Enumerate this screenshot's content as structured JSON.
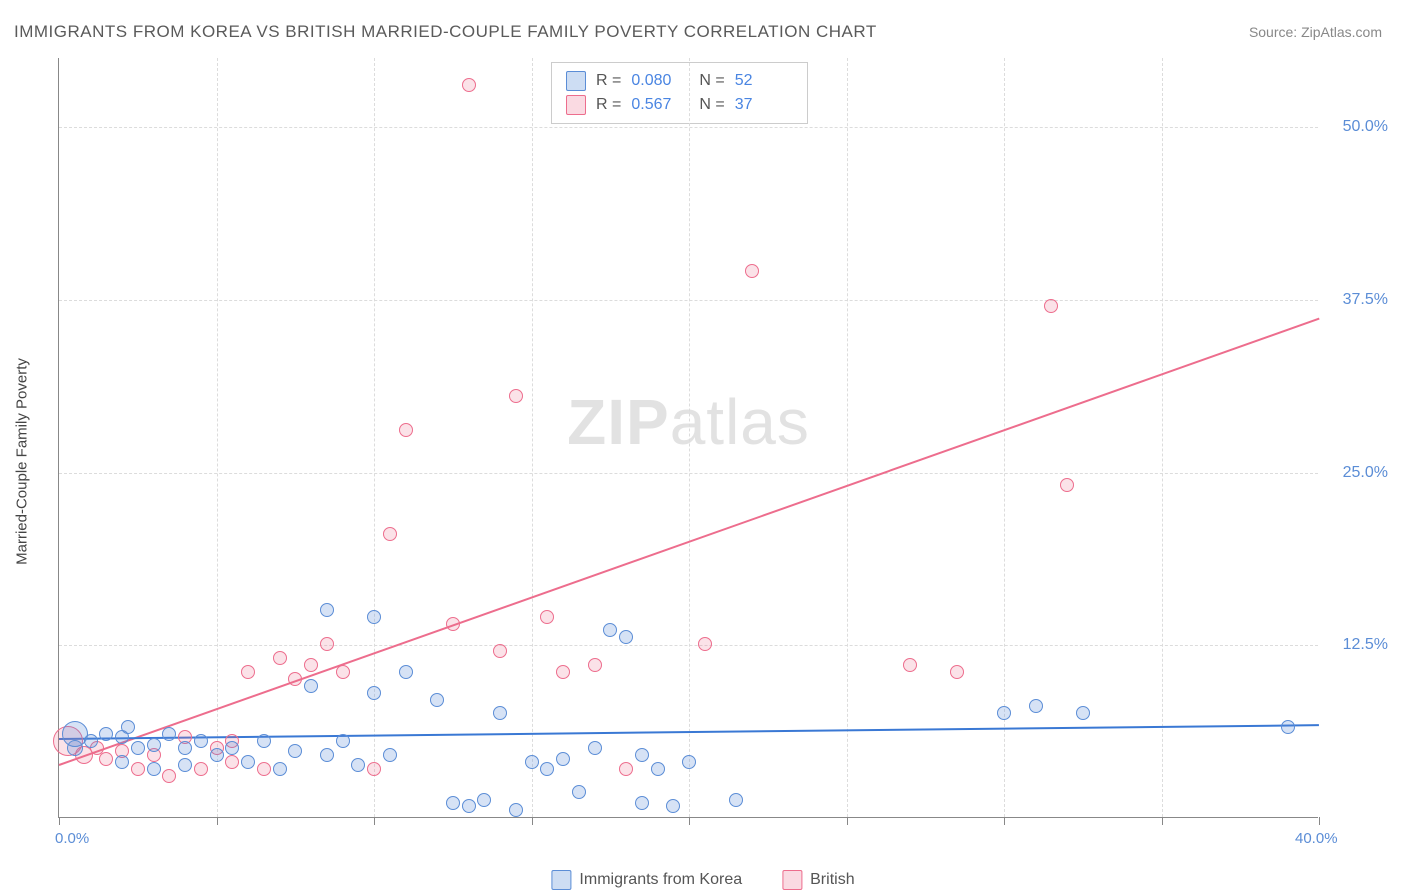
{
  "title": "IMMIGRANTS FROM KOREA VS BRITISH MARRIED-COUPLE FAMILY POVERTY CORRELATION CHART",
  "source_label": "Source: ZipAtlas.com",
  "watermark": {
    "prefix": "ZIP",
    "suffix": "atlas"
  },
  "chart": {
    "type": "scatter",
    "y_axis_label": "Married-Couple Family Poverty",
    "background_color": "#ffffff",
    "grid_color": "#dcdcdc",
    "axis_color": "#888888",
    "xlim": [
      0,
      40
    ],
    "ylim": [
      0,
      55
    ],
    "x_ticks": [
      0,
      5,
      10,
      15,
      20,
      25,
      30,
      35,
      40
    ],
    "x_tick_labels": {
      "0": "0.0%",
      "40": "40.0%"
    },
    "y_ticks": [
      12.5,
      25.0,
      37.5,
      50.0
    ],
    "y_tick_labels": [
      "12.5%",
      "25.0%",
      "37.5%",
      "50.0%"
    ],
    "legend_stats": {
      "r_label": "R =",
      "n_label": "N =",
      "rows": [
        {
          "color": "blue",
          "r": "0.080",
          "n": "52"
        },
        {
          "color": "pink",
          "r": "0.567",
          "n": "37"
        }
      ]
    },
    "bottom_legend": [
      {
        "color": "blue",
        "label": "Immigrants from Korea"
      },
      {
        "color": "pink",
        "label": "British"
      }
    ],
    "series_colors": {
      "blue": {
        "fill": "rgba(91,141,214,0.25)",
        "stroke": "#5b8dd6",
        "line": "#3a78d4"
      },
      "pink": {
        "fill": "rgba(237,109,141,0.2)",
        "stroke": "#ed6d8d",
        "line": "#ed6d8d"
      }
    },
    "trend_lines": {
      "blue": {
        "x1": 0,
        "y1": 5.8,
        "x2": 40,
        "y2": 6.8
      },
      "pink": {
        "x1": 0,
        "y1": 3.9,
        "x2": 40,
        "y2": 36.2
      }
    },
    "marker_base_size": 14,
    "points_blue": [
      {
        "x": 0.5,
        "y": 6.0,
        "s": 26
      },
      {
        "x": 0.5,
        "y": 5.0,
        "s": 16
      },
      {
        "x": 1.0,
        "y": 5.5,
        "s": 14
      },
      {
        "x": 1.5,
        "y": 6.0,
        "s": 14
      },
      {
        "x": 2.0,
        "y": 5.8,
        "s": 14
      },
      {
        "x": 2.0,
        "y": 4.0,
        "s": 14
      },
      {
        "x": 2.5,
        "y": 5.0,
        "s": 14
      },
      {
        "x": 3.0,
        "y": 5.2,
        "s": 14
      },
      {
        "x": 3.0,
        "y": 3.5,
        "s": 14
      },
      {
        "x": 3.5,
        "y": 6.0,
        "s": 14
      },
      {
        "x": 4.0,
        "y": 5.0,
        "s": 14
      },
      {
        "x": 4.0,
        "y": 3.8,
        "s": 14
      },
      {
        "x": 4.5,
        "y": 5.5,
        "s": 14
      },
      {
        "x": 5.0,
        "y": 4.5,
        "s": 14
      },
      {
        "x": 5.5,
        "y": 5.0,
        "s": 14
      },
      {
        "x": 6.0,
        "y": 4.0,
        "s": 14
      },
      {
        "x": 6.5,
        "y": 5.5,
        "s": 14
      },
      {
        "x": 7.0,
        "y": 3.5,
        "s": 14
      },
      {
        "x": 7.5,
        "y": 4.8,
        "s": 14
      },
      {
        "x": 8.0,
        "y": 9.5,
        "s": 14
      },
      {
        "x": 8.5,
        "y": 4.5,
        "s": 14
      },
      {
        "x": 8.5,
        "y": 15.0,
        "s": 14
      },
      {
        "x": 9.0,
        "y": 5.5,
        "s": 14
      },
      {
        "x": 9.5,
        "y": 3.8,
        "s": 14
      },
      {
        "x": 10.0,
        "y": 14.5,
        "s": 14
      },
      {
        "x": 10.0,
        "y": 9.0,
        "s": 14
      },
      {
        "x": 10.5,
        "y": 4.5,
        "s": 14
      },
      {
        "x": 11.0,
        "y": 10.5,
        "s": 14
      },
      {
        "x": 12.0,
        "y": 8.5,
        "s": 14
      },
      {
        "x": 12.5,
        "y": 1.0,
        "s": 14
      },
      {
        "x": 13.0,
        "y": 0.8,
        "s": 14
      },
      {
        "x": 13.5,
        "y": 1.2,
        "s": 14
      },
      {
        "x": 14.0,
        "y": 7.5,
        "s": 14
      },
      {
        "x": 14.5,
        "y": 0.5,
        "s": 14
      },
      {
        "x": 15.0,
        "y": 4.0,
        "s": 14
      },
      {
        "x": 15.5,
        "y": 3.5,
        "s": 14
      },
      {
        "x": 16.0,
        "y": 4.2,
        "s": 14
      },
      {
        "x": 16.5,
        "y": 1.8,
        "s": 14
      },
      {
        "x": 17.0,
        "y": 5.0,
        "s": 14
      },
      {
        "x": 17.5,
        "y": 13.5,
        "s": 14
      },
      {
        "x": 18.0,
        "y": 13.0,
        "s": 14
      },
      {
        "x": 18.5,
        "y": 4.5,
        "s": 14
      },
      {
        "x": 18.5,
        "y": 1.0,
        "s": 14
      },
      {
        "x": 19.0,
        "y": 3.5,
        "s": 14
      },
      {
        "x": 19.5,
        "y": 0.8,
        "s": 14
      },
      {
        "x": 20.0,
        "y": 4.0,
        "s": 14
      },
      {
        "x": 21.5,
        "y": 1.2,
        "s": 14
      },
      {
        "x": 30.0,
        "y": 7.5,
        "s": 14
      },
      {
        "x": 31.0,
        "y": 8.0,
        "s": 14
      },
      {
        "x": 32.5,
        "y": 7.5,
        "s": 14
      },
      {
        "x": 39.0,
        "y": 6.5,
        "s": 14
      },
      {
        "x": 2.2,
        "y": 6.5,
        "s": 14
      }
    ],
    "points_pink": [
      {
        "x": 0.3,
        "y": 5.5,
        "s": 30
      },
      {
        "x": 0.8,
        "y": 4.5,
        "s": 18
      },
      {
        "x": 1.2,
        "y": 5.0,
        "s": 14
      },
      {
        "x": 1.5,
        "y": 4.2,
        "s": 14
      },
      {
        "x": 2.0,
        "y": 4.8,
        "s": 14
      },
      {
        "x": 2.5,
        "y": 3.5,
        "s": 14
      },
      {
        "x": 3.0,
        "y": 4.5,
        "s": 14
      },
      {
        "x": 3.5,
        "y": 3.0,
        "s": 14
      },
      {
        "x": 4.0,
        "y": 5.8,
        "s": 14
      },
      {
        "x": 4.5,
        "y": 3.5,
        "s": 14
      },
      {
        "x": 5.0,
        "y": 5.0,
        "s": 14
      },
      {
        "x": 5.5,
        "y": 4.0,
        "s": 14
      },
      {
        "x": 6.0,
        "y": 10.5,
        "s": 14
      },
      {
        "x": 6.5,
        "y": 3.5,
        "s": 14
      },
      {
        "x": 7.0,
        "y": 11.5,
        "s": 14
      },
      {
        "x": 7.5,
        "y": 10.0,
        "s": 14
      },
      {
        "x": 8.0,
        "y": 11.0,
        "s": 14
      },
      {
        "x": 8.5,
        "y": 12.5,
        "s": 14
      },
      {
        "x": 9.0,
        "y": 10.5,
        "s": 14
      },
      {
        "x": 10.0,
        "y": 3.5,
        "s": 14
      },
      {
        "x": 10.5,
        "y": 20.5,
        "s": 14
      },
      {
        "x": 11.0,
        "y": 28.0,
        "s": 14
      },
      {
        "x": 12.5,
        "y": 14.0,
        "s": 14
      },
      {
        "x": 13.0,
        "y": 53.0,
        "s": 14
      },
      {
        "x": 14.0,
        "y": 12.0,
        "s": 14
      },
      {
        "x": 14.5,
        "y": 30.5,
        "s": 14
      },
      {
        "x": 15.5,
        "y": 14.5,
        "s": 14
      },
      {
        "x": 16.0,
        "y": 10.5,
        "s": 14
      },
      {
        "x": 17.0,
        "y": 11.0,
        "s": 14
      },
      {
        "x": 18.0,
        "y": 3.5,
        "s": 14
      },
      {
        "x": 20.5,
        "y": 12.5,
        "s": 14
      },
      {
        "x": 22.0,
        "y": 39.5,
        "s": 14
      },
      {
        "x": 27.0,
        "y": 11.0,
        "s": 14
      },
      {
        "x": 28.5,
        "y": 10.5,
        "s": 14
      },
      {
        "x": 31.5,
        "y": 37.0,
        "s": 14
      },
      {
        "x": 32.0,
        "y": 24.0,
        "s": 14
      },
      {
        "x": 5.5,
        "y": 5.5,
        "s": 14
      }
    ]
  }
}
